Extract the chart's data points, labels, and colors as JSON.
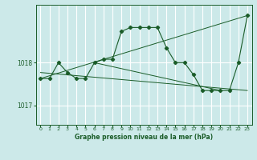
{
  "title": "Graphe pression niveau de la mer (hPa)",
  "bg_color": "#cce9e9",
  "grid_color": "#ffffff",
  "line_color": "#1a5c28",
  "xlim": [
    -0.5,
    23.5
  ],
  "ylim": [
    1016.55,
    1019.35
  ],
  "yticks": [
    1017,
    1018
  ],
  "xticks": [
    0,
    1,
    2,
    3,
    4,
    5,
    6,
    7,
    8,
    9,
    10,
    11,
    12,
    13,
    14,
    15,
    16,
    17,
    18,
    19,
    20,
    21,
    22,
    23
  ],
  "main_x": [
    0,
    1,
    2,
    3,
    4,
    5,
    6,
    7,
    8,
    9,
    10,
    11,
    12,
    13,
    14,
    15,
    16,
    17,
    18,
    19,
    20,
    21,
    22,
    23
  ],
  "main_y": [
    1017.63,
    1017.63,
    1018.0,
    1017.77,
    1017.63,
    1017.63,
    1018.0,
    1018.08,
    1018.08,
    1018.73,
    1018.82,
    1018.82,
    1018.82,
    1018.82,
    1018.35,
    1018.0,
    1018.0,
    1017.72,
    1017.35,
    1017.35,
    1017.35,
    1017.35,
    1018.0,
    1019.1
  ],
  "trend1_x": [
    0,
    23
  ],
  "trend1_y": [
    1017.63,
    1019.1
  ],
  "trend2_x": [
    0,
    23
  ],
  "trend2_y": [
    1017.77,
    1017.35
  ],
  "trend3_x": [
    6,
    20
  ],
  "trend3_y": [
    1018.0,
    1017.35
  ]
}
